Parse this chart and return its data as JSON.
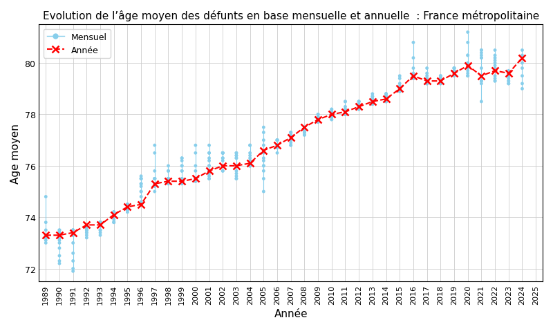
{
  "title": "Evolution de l’âge moyen des défunts en base mensuelle et annuelle  : France métropolitaine",
  "xlabel": "Année",
  "ylabel": "Age moyen",
  "xlim": [
    1988.5,
    2025.5
  ],
  "ylim": [
    71.5,
    81.5
  ],
  "yticks": [
    72,
    74,
    76,
    78,
    80
  ],
  "monthly_color": "#87CEEB",
  "yearly_color": "red",
  "yearly_data": {
    "years": [
      1989,
      1990,
      1991,
      1992,
      1993,
      1994,
      1995,
      1996,
      1997,
      1998,
      1999,
      2000,
      2001,
      2002,
      2003,
      2004,
      2005,
      2006,
      2007,
      2008,
      2009,
      2010,
      2011,
      2012,
      2013,
      2014,
      2015,
      2016,
      2017,
      2018,
      2019,
      2020,
      2021,
      2022,
      2023,
      2024
    ],
    "values": [
      73.3,
      73.3,
      73.4,
      73.7,
      73.7,
      74.1,
      74.4,
      74.5,
      75.3,
      75.4,
      75.4,
      75.5,
      75.8,
      76.0,
      76.0,
      76.1,
      76.6,
      76.8,
      77.1,
      77.5,
      77.8,
      78.0,
      78.1,
      78.3,
      78.5,
      78.6,
      79.0,
      79.5,
      79.3,
      79.3,
      79.6,
      79.9,
      79.5,
      79.7,
      79.6,
      80.2
    ]
  },
  "monthly_data": {
    "1989": [
      74.8,
      73.8,
      73.5,
      73.2,
      73.2,
      73.0,
      73.2,
      73.2,
      73.1,
      73.2,
      73.3,
      73.3
    ],
    "1990": [
      73.5,
      73.5,
      73.4,
      73.2,
      73.2,
      73.2,
      73.1,
      73.0,
      72.8,
      72.5,
      72.3,
      72.2
    ],
    "1991": [
      72.0,
      72.3,
      72.6,
      73.0,
      73.3,
      73.5,
      73.5,
      73.5,
      73.5,
      73.4,
      73.3,
      71.9
    ],
    "1992": [
      73.2,
      73.3,
      73.4,
      73.5,
      73.6,
      73.6,
      73.6,
      73.5,
      73.5,
      73.5,
      73.5,
      73.4
    ],
    "1993": [
      73.3,
      73.4,
      73.5,
      73.5,
      73.7,
      73.8,
      73.8,
      73.8,
      73.8,
      73.8,
      73.8,
      73.8
    ],
    "1994": [
      73.8,
      73.8,
      73.8,
      73.9,
      74.0,
      74.1,
      74.2,
      74.2,
      74.2,
      74.2,
      74.2,
      74.2
    ],
    "1995": [
      74.2,
      74.3,
      74.4,
      74.5,
      74.5,
      74.5,
      74.5,
      74.4,
      74.4,
      74.3,
      74.3,
      74.3
    ],
    "1996": [
      74.5,
      74.6,
      74.8,
      75.0,
      75.2,
      75.3,
      75.5,
      75.5,
      75.6,
      75.5,
      75.3,
      75.0
    ],
    "1997": [
      76.8,
      76.5,
      75.8,
      75.5,
      75.5,
      75.5,
      75.5,
      75.5,
      75.5,
      75.3,
      75.2,
      75.0
    ],
    "1998": [
      75.3,
      75.5,
      75.8,
      76.0,
      75.8,
      75.5,
      75.5,
      75.5,
      75.5,
      75.5,
      75.5,
      75.4
    ],
    "1999": [
      75.5,
      75.8,
      76.0,
      76.2,
      76.3,
      76.3,
      76.0,
      75.8,
      75.5,
      75.5,
      75.4,
      75.3
    ],
    "2000": [
      76.8,
      76.5,
      76.0,
      75.8,
      75.5,
      75.5,
      75.5,
      75.5,
      75.5,
      75.4,
      75.4,
      75.4
    ],
    "2001": [
      76.8,
      76.5,
      76.2,
      76.0,
      75.8,
      75.6,
      75.5,
      75.5,
      75.7,
      76.0,
      76.3,
      76.5
    ],
    "2002": [
      76.5,
      76.5,
      76.3,
      76.0,
      75.8,
      75.8,
      76.0,
      76.2,
      76.3,
      76.5,
      76.5,
      76.5
    ],
    "2003": [
      76.3,
      76.4,
      76.5,
      76.5,
      76.4,
      76.3,
      76.0,
      75.8,
      75.7,
      75.6,
      75.5,
      75.5
    ],
    "2004": [
      76.8,
      76.8,
      76.5,
      76.4,
      76.3,
      76.2,
      76.0,
      76.0,
      76.0,
      76.0,
      76.0,
      76.0
    ],
    "2005": [
      77.5,
      77.3,
      77.0,
      76.8,
      76.5,
      76.3,
      76.2,
      76.0,
      76.0,
      75.8,
      75.5,
      75.0
    ],
    "2006": [
      76.5,
      76.8,
      77.0,
      77.0,
      77.0,
      77.0,
      77.0,
      76.8,
      76.8,
      76.8,
      76.7,
      76.8
    ],
    "2007": [
      77.3,
      77.3,
      77.3,
      77.2,
      77.2,
      77.1,
      77.0,
      77.0,
      77.0,
      76.9,
      76.8,
      76.8
    ],
    "2008": [
      77.5,
      77.5,
      77.5,
      77.4,
      77.3,
      77.3,
      77.3,
      77.3,
      77.3,
      77.3,
      77.2,
      77.2
    ],
    "2009": [
      77.8,
      77.9,
      78.0,
      78.0,
      77.9,
      77.8,
      77.8,
      77.8,
      77.7,
      77.7,
      77.7,
      77.8
    ],
    "2010": [
      78.2,
      78.2,
      78.1,
      78.0,
      78.0,
      78.0,
      78.0,
      78.0,
      77.9,
      77.9,
      77.8,
      77.8
    ],
    "2011": [
      78.5,
      78.5,
      78.3,
      78.2,
      78.2,
      78.1,
      78.1,
      78.0,
      78.0,
      78.0,
      78.0,
      78.0
    ],
    "2012": [
      78.5,
      78.5,
      78.5,
      78.5,
      78.4,
      78.3,
      78.3,
      78.3,
      78.3,
      78.3,
      78.2,
      78.2
    ],
    "2013": [
      78.6,
      78.6,
      78.7,
      78.8,
      78.7,
      78.6,
      78.5,
      78.5,
      78.5,
      78.4,
      78.4,
      78.4
    ],
    "2014": [
      78.8,
      78.8,
      78.8,
      78.7,
      78.7,
      78.6,
      78.6,
      78.6,
      78.6,
      78.5,
      78.5,
      78.5
    ],
    "2015": [
      79.5,
      79.4,
      79.2,
      79.1,
      79.0,
      79.0,
      79.0,
      79.0,
      78.9,
      78.9,
      78.9,
      78.9
    ],
    "2016": [
      80.8,
      80.2,
      79.8,
      79.6,
      79.5,
      79.5,
      79.5,
      79.4,
      79.4,
      79.4,
      79.4,
      79.4
    ],
    "2017": [
      79.8,
      79.6,
      79.5,
      79.4,
      79.4,
      79.3,
      79.3,
      79.3,
      79.2,
      79.2,
      79.2,
      79.2
    ],
    "2018": [
      79.5,
      79.5,
      79.4,
      79.4,
      79.3,
      79.3,
      79.3,
      79.2,
      79.2,
      79.2,
      79.2,
      79.3
    ],
    "2019": [
      79.5,
      79.6,
      79.7,
      79.7,
      79.8,
      79.8,
      79.8,
      79.8,
      79.7,
      79.7,
      79.7,
      79.7
    ],
    "2020": [
      80.0,
      80.3,
      81.2,
      80.8,
      80.3,
      80.0,
      79.8,
      79.7,
      79.6,
      79.5,
      79.5,
      79.5
    ],
    "2021": [
      79.3,
      79.2,
      79.3,
      79.5,
      79.8,
      80.2,
      80.5,
      80.5,
      80.4,
      80.3,
      80.2,
      78.5
    ],
    "2022": [
      80.5,
      80.3,
      80.2,
      80.1,
      80.0,
      79.9,
      79.8,
      79.7,
      79.5,
      79.4,
      79.3,
      79.3
    ],
    "2023": [
      79.5,
      79.6,
      79.7,
      79.6,
      79.5,
      79.5,
      79.4,
      79.3,
      79.3,
      79.2,
      79.2,
      79.2
    ],
    "2024": [
      80.3,
      80.5,
      80.0,
      79.8,
      79.5,
      79.2,
      79.0
    ]
  }
}
